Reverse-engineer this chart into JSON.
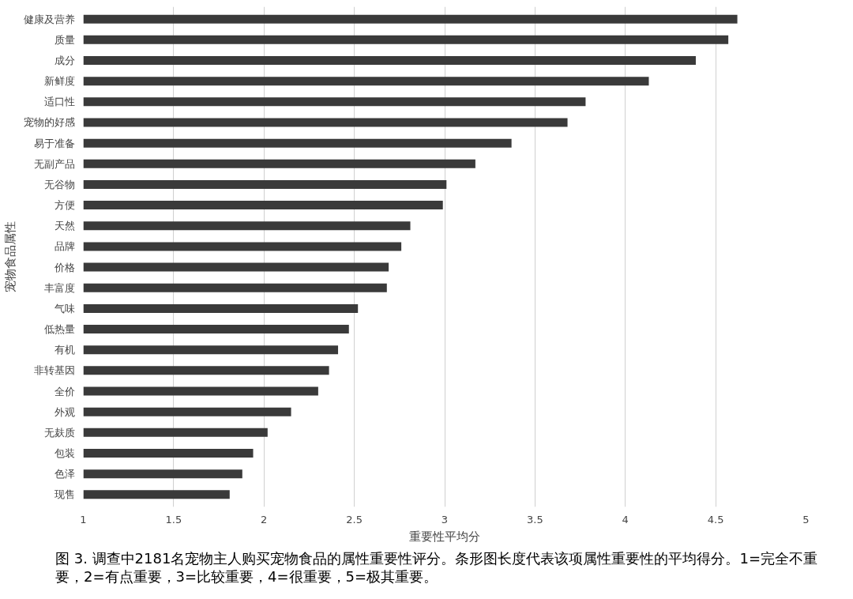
{
  "chart_data": {
    "type": "bar",
    "orientation": "horizontal",
    "xlabel": "重要性平均分",
    "ylabel": "宠物食品属性",
    "categories": [
      "健康及营养",
      "质量",
      "成分",
      "新鲜度",
      "适口性",
      "宠物的好感",
      "易于准备",
      "无副产品",
      "无谷物",
      "方便",
      "天然",
      "品牌",
      "价格",
      "丰富度",
      "气味",
      "低热量",
      "有机",
      "非转基因",
      "全价",
      "外观",
      "无麸质",
      "包装",
      "色泽",
      "现售"
    ],
    "values": [
      4.62,
      4.57,
      4.39,
      4.13,
      3.78,
      3.68,
      3.37,
      3.17,
      3.01,
      2.99,
      2.81,
      2.76,
      2.69,
      2.68,
      2.52,
      2.47,
      2.41,
      2.36,
      2.3,
      2.15,
      2.02,
      1.94,
      1.88,
      1.81
    ],
    "color": "#3a3a3a",
    "xlim": [
      1,
      5
    ],
    "xticks": [
      1,
      1.5,
      2,
      2.5,
      3,
      3.5,
      4,
      4.5,
      5
    ],
    "grid": "x",
    "annotations": [
      "图 3. 调查中2181名宠物主人购买宠物食品的属性重要性评分。条形图长度代表该项属性重要性的平均得分。1=完全不重要，2=有点重要，3=比较重要，4=很重要，5=极其重要。"
    ]
  }
}
